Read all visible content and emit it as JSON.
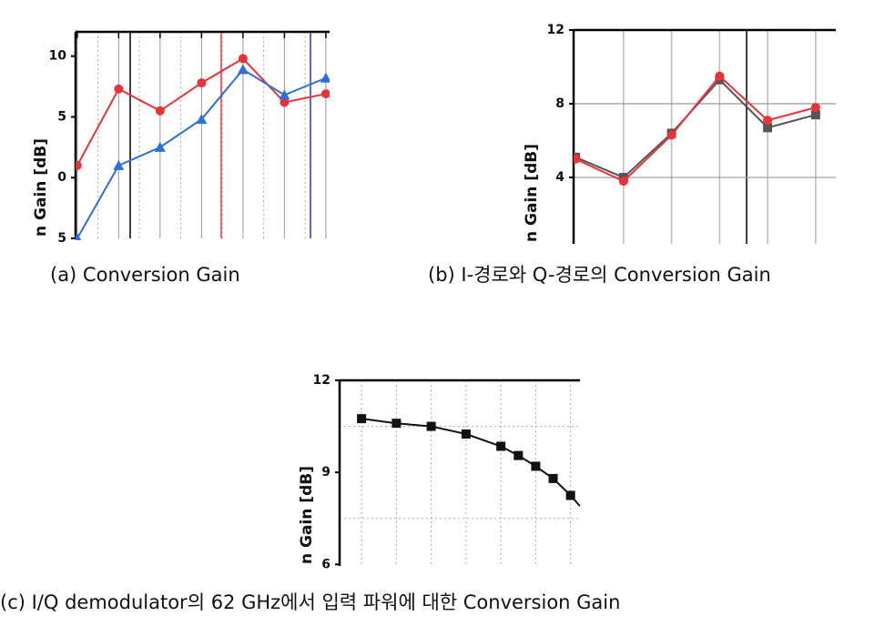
{
  "chart_data": [
    {
      "type": "line",
      "caption": "(a) Conversion Gain",
      "ylabel": "n Gain [dB]",
      "x": [
        0,
        1,
        2,
        3,
        4,
        5,
        6
      ],
      "xlim": [
        -0.04,
        6.09
      ],
      "ylim": [
        -5,
        12
      ],
      "yticks": [
        10,
        5,
        0,
        {
          "value": -5,
          "label": "5"
        }
      ],
      "series": [
        {
          "color": "#e8333a",
          "marker": "circle",
          "values": [
            1.0,
            7.3,
            5.5,
            7.8,
            9.8,
            6.2,
            6.9
          ]
        },
        {
          "color": "#2d6fd6",
          "marker": "triangle",
          "values": [
            -5,
            1.0,
            2.5,
            4.8,
            8.9,
            6.8,
            8.2
          ]
        }
      ]
    },
    {
      "type": "line",
      "caption": "(b) I-경로와 Q-경로의 Conversion Gain",
      "ylabel": "n Gain [dB]",
      "x": [
        0,
        1,
        2,
        3,
        4,
        5
      ],
      "xlim": [
        -0.04,
        5.42
      ],
      "ylim": [
        0.4,
        12
      ],
      "yticks": [
        12,
        8,
        4
      ],
      "series": [
        {
          "color": "#555555",
          "marker": "square",
          "values": [
            5.1,
            4.0,
            6.4,
            9.3,
            6.7,
            7.4
          ]
        },
        {
          "color": "#e8333a",
          "marker": "circle",
          "values": [
            5.0,
            3.8,
            6.3,
            9.5,
            7.1,
            7.8
          ]
        }
      ]
    },
    {
      "type": "line",
      "caption": "(c) I/Q demodulator의 62 GHz에서 입력 파워에 대한 Conversion Gain",
      "ylabel": "n Gain [dB]",
      "x": [
        0,
        1,
        2,
        3,
        4,
        4.5,
        5,
        5.5,
        6,
        6.27
      ],
      "xlim": [
        -0.63,
        6.27
      ],
      "ylim": [
        5.95,
        12
      ],
      "yticks": [
        12,
        9,
        6
      ],
      "series": [
        {
          "color": "#111111",
          "marker": "square",
          "values": [
            10.75,
            10.6,
            10.5,
            10.25,
            9.85,
            9.55,
            9.2,
            8.8,
            8.25,
            7.9
          ]
        }
      ]
    }
  ]
}
